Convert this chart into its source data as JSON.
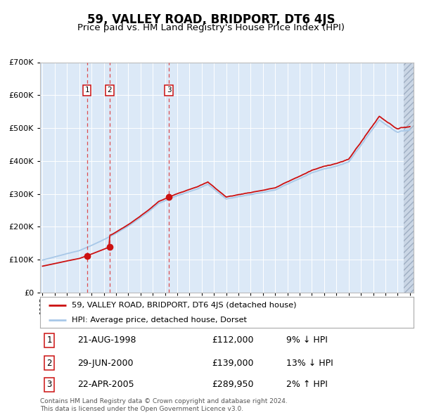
{
  "title": "59, VALLEY ROAD, BRIDPORT, DT6 4JS",
  "subtitle": "Price paid vs. HM Land Registry's House Price Index (HPI)",
  "title_fontsize": 12,
  "subtitle_fontsize": 10,
  "plot_bg_color": "#dce9f7",
  "hpi_color": "#a8c8e8",
  "price_color": "#cc1111",
  "purchases": [
    {
      "date_year": 1998.64,
      "price": 112000,
      "label": "1"
    },
    {
      "date_year": 2000.49,
      "price": 139000,
      "label": "2"
    },
    {
      "date_year": 2005.31,
      "price": 289950,
      "label": "3"
    }
  ],
  "vline_dates": [
    1998.64,
    2000.49,
    2005.31
  ],
  "ylim": [
    0,
    700000
  ],
  "yticks": [
    0,
    100000,
    200000,
    300000,
    400000,
    500000,
    600000,
    700000
  ],
  "xlim_start": 1994.8,
  "xlim_end": 2025.3,
  "hatch_start": 2024.5,
  "legend_price_label": "59, VALLEY ROAD, BRIDPORT, DT6 4JS (detached house)",
  "legend_hpi_label": "HPI: Average price, detached house, Dorset",
  "table_rows": [
    {
      "num": "1",
      "date": "21-AUG-1998",
      "price": "£112,000",
      "change": "9% ↓ HPI"
    },
    {
      "num": "2",
      "date": "29-JUN-2000",
      "price": "£139,000",
      "change": "13% ↓ HPI"
    },
    {
      "num": "3",
      "date": "22-APR-2005",
      "price": "£289,950",
      "change": "2% ↑ HPI"
    }
  ],
  "footnote": "Contains HM Land Registry data © Crown copyright and database right 2024.\nThis data is licensed under the Open Government Licence v3.0."
}
